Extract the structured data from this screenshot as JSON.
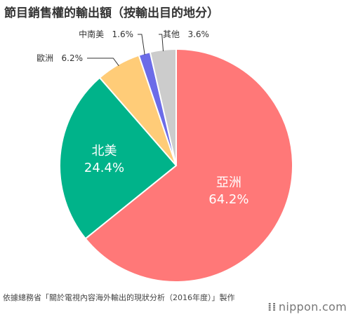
{
  "header": {
    "title": "節目銷售權的輸出額（按輸出目的地分）"
  },
  "chart_data": {
    "type": "pie",
    "title": "節目銷售權的輸出額（按輸出目的地分）",
    "unit": "%",
    "slices": [
      {
        "label": "亞洲",
        "value": 64.2,
        "display": "64.2%",
        "color": "#ff7878"
      },
      {
        "label": "北美",
        "value": 24.4,
        "display": "24.4%",
        "color": "#00b38a"
      },
      {
        "label": "歐洲",
        "value": 6.2,
        "display": "6.2%",
        "color": "#ffcc78"
      },
      {
        "label": "中南美",
        "value": 1.6,
        "display": "1.6%",
        "color": "#6c6ce8"
      },
      {
        "label": "其他",
        "value": 3.6,
        "display": "3.6%",
        "color": "#cccccc"
      }
    ]
  },
  "footer": {
    "source": "依據總務省「關於電視內容海外輸出的現狀分析（2016年度）」製作",
    "brand_mark": "⁞⁞",
    "brand": "nippon.com"
  }
}
